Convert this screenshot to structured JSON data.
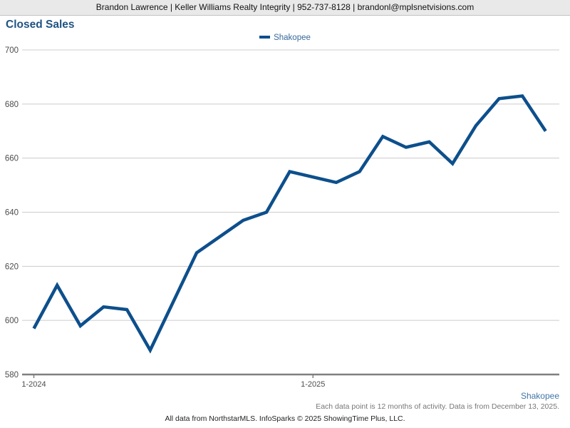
{
  "header": {
    "contact_line": "Brandon Lawrence | Keller Williams Realty Integrity | 952-737-8128 | brandonl@mplsnetvisions.com"
  },
  "title": "Closed Sales",
  "legend": {
    "label": "Shakopee"
  },
  "chart_data": {
    "type": "line",
    "title": "Closed Sales",
    "x": [
      "1-2024",
      "2-2024",
      "3-2024",
      "4-2024",
      "5-2024",
      "6-2024",
      "7-2024",
      "8-2024",
      "9-2024",
      "10-2024",
      "11-2024",
      "12-2024",
      "1-2025",
      "2-2025",
      "3-2025",
      "4-2025",
      "5-2025",
      "6-2025",
      "7-2025",
      "8-2025",
      "9-2025",
      "10-2025",
      "11-2025"
    ],
    "series": [
      {
        "name": "Shakopee",
        "values": [
          597,
          613,
          598,
          605,
          604,
          589,
          607,
          625,
          631,
          637,
          640,
          655,
          653,
          651,
          655,
          668,
          664,
          666,
          658,
          672,
          682,
          683,
          670
        ]
      }
    ],
    "ylim": [
      580,
      700
    ],
    "yticks": [
      580,
      600,
      620,
      640,
      660,
      680,
      700
    ],
    "xticks_shown": [
      "1-2024",
      "1-2025"
    ],
    "grid": true,
    "legend_position": "top-center",
    "xlabel": "",
    "ylabel": ""
  },
  "footer": {
    "series_label": "Shakopee",
    "note": "Each data point is 12 months of activity. Data is from December 13, 2025.",
    "attribution": "All data from NorthstarMLS. InfoSparks © 2025 ShowingTime Plus, LLC."
  },
  "colors": {
    "line": "#0d4f8c",
    "legend_text": "#36699c",
    "gridline": "#cccccc",
    "axis_line": "#7f7f7f",
    "tick_label": "#4d4d4d",
    "title_text": "#1f5382",
    "header_background": "#e9e9e9",
    "footer_series_text": "#4076a8",
    "footer_note_text": "#777777"
  }
}
